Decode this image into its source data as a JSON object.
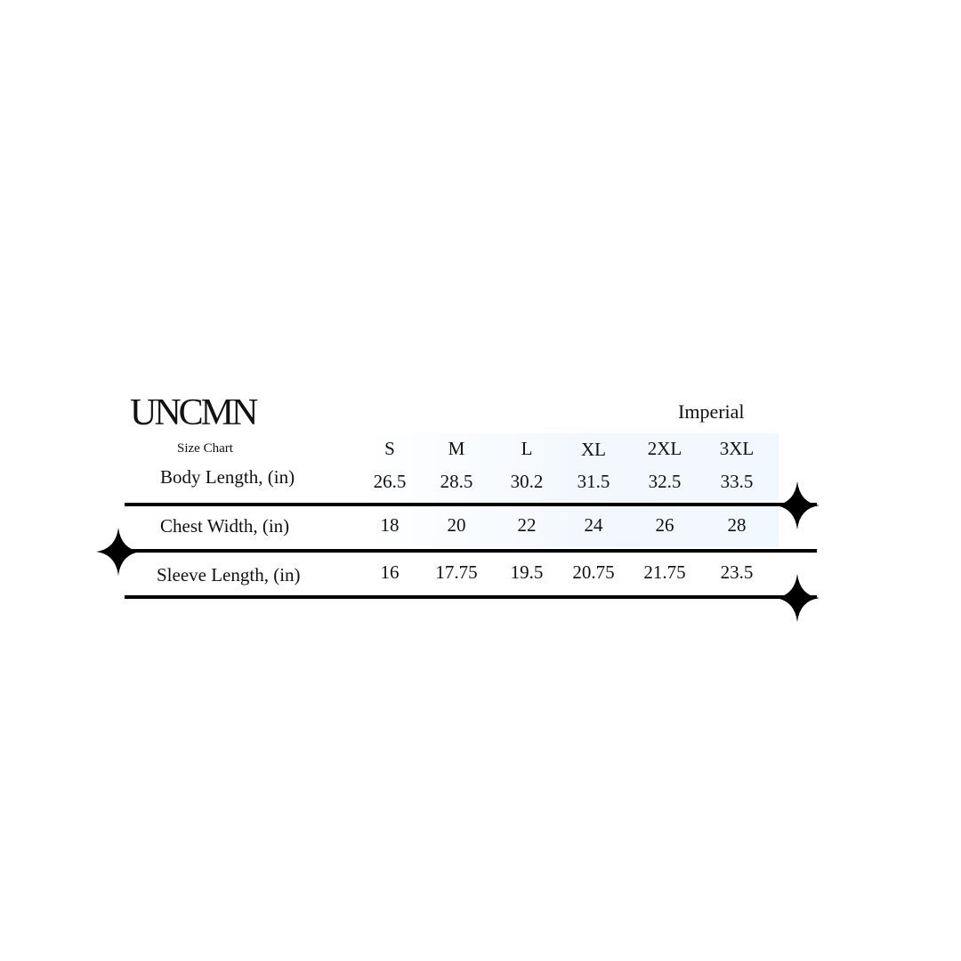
{
  "brand": {
    "logo": "UNCMN",
    "subtitle": "Size Chart"
  },
  "unit_system": "Imperial",
  "table": {
    "columns": [
      "S",
      "M",
      "L",
      "XL",
      "2XL",
      "3XL"
    ],
    "rows": [
      {
        "label": "Body Length, (in)",
        "values": [
          "26.5",
          "28.5",
          "30.2",
          "31.5",
          "32.5",
          "33.5"
        ]
      },
      {
        "label": "Chest Width, (in)",
        "values": [
          "18",
          "20",
          "22",
          "24",
          "26",
          "28"
        ]
      },
      {
        "label": "Sleeve Length, (in)",
        "values": [
          "16",
          "17.75",
          "19.5",
          "20.75",
          "21.75",
          "23.5"
        ]
      }
    ]
  },
  "icons": [
    "four-point-star-icon"
  ],
  "colors": {
    "text": "#111111",
    "rule": "#000000",
    "tint": "#ecf4fd"
  }
}
